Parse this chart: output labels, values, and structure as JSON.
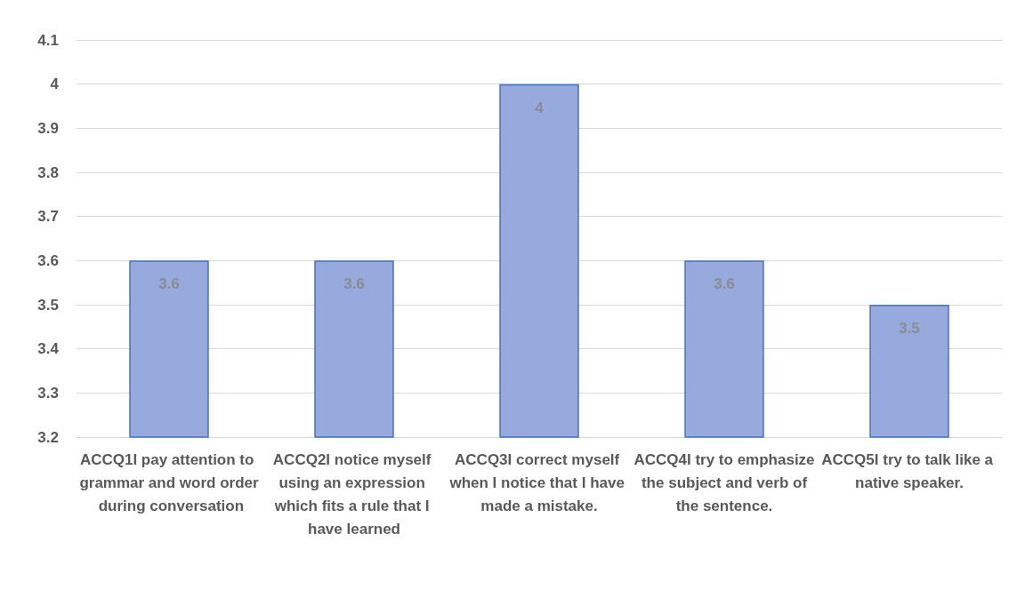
{
  "chart_data": {
    "type": "bar",
    "categories": [
      "ACCQ1I pay attention to grammar and word order during conversation",
      "ACCQ2I notice myself using an expression which fits a rule that I have learned",
      "ACCQ3I correct myself when I notice that I have made a mistake.",
      "ACCQ4I try to emphasize the subject and verb of the sentence.",
      "ACCQ5I try to talk like a native speaker."
    ],
    "values": [
      3.6,
      3.6,
      4,
      3.6,
      3.5
    ],
    "color": "#97aade",
    "ylim": [
      3.2,
      4.1
    ],
    "yticks": [
      3.2,
      3.3,
      3.4,
      3.5,
      3.6,
      3.7,
      3.8,
      3.9,
      4,
      4.1
    ],
    "grid": "y",
    "data_labels": true
  }
}
